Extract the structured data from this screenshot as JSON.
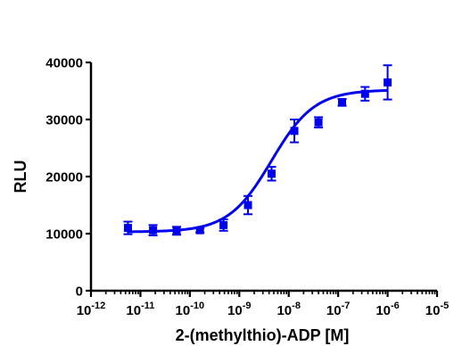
{
  "chart_data": {
    "type": "scatter",
    "title": "",
    "xlabel": "2-(methylthio)-ADP [M]",
    "ylabel": "RLU",
    "x_scale": "log",
    "xlim": [
      1e-12,
      1e-05
    ],
    "ylim": [
      0,
      40000
    ],
    "x_tick_values": [
      1e-12,
      1e-11,
      1e-10,
      1e-09,
      1e-08,
      1e-07,
      1e-06,
      1e-05
    ],
    "x_tick_labels": [
      {
        "base": "10",
        "exp": "-12"
      },
      {
        "base": "10",
        "exp": "-11"
      },
      {
        "base": "10",
        "exp": "-10"
      },
      {
        "base": "10",
        "exp": "-9"
      },
      {
        "base": "10",
        "exp": "-8"
      },
      {
        "base": "10",
        "exp": "-7"
      },
      {
        "base": "10",
        "exp": "-6"
      },
      {
        "base": "10",
        "exp": "-5"
      }
    ],
    "y_ticks": [
      0,
      10000,
      20000,
      30000,
      40000
    ],
    "y_tick_labels": [
      "0",
      "10000",
      "20000",
      "30000",
      "40000"
    ],
    "grid": false,
    "legend": "none",
    "color": "#0000ee",
    "series": [
      {
        "points": [
          {
            "x": 5.6e-12,
            "y": 11000,
            "err": 1100
          },
          {
            "x": 1.8e-11,
            "y": 10600,
            "err": 900
          },
          {
            "x": 5.4e-11,
            "y": 10500,
            "err": 700
          },
          {
            "x": 1.6e-10,
            "y": 10600,
            "err": 400
          },
          {
            "x": 4.8e-10,
            "y": 11500,
            "err": 1000
          },
          {
            "x": 1.5e-09,
            "y": 15000,
            "err": 1600
          },
          {
            "x": 4.5e-09,
            "y": 20500,
            "err": 1200
          },
          {
            "x": 1.3e-08,
            "y": 28000,
            "err": 2000
          },
          {
            "x": 4e-08,
            "y": 29500,
            "err": 900
          },
          {
            "x": 1.2e-07,
            "y": 33000,
            "err": 600
          },
          {
            "x": 3.5e-07,
            "y": 34500,
            "err": 1200
          },
          {
            "x": 1e-06,
            "y": 36500,
            "err": 3000
          }
        ],
        "fit": {
          "model": "sigmoidal dose-response",
          "bottom": 10300,
          "top": 35200,
          "logEC50": -8.35,
          "hill": 1.0,
          "x_range": [
            5.6e-12,
            1e-06
          ]
        }
      }
    ]
  }
}
